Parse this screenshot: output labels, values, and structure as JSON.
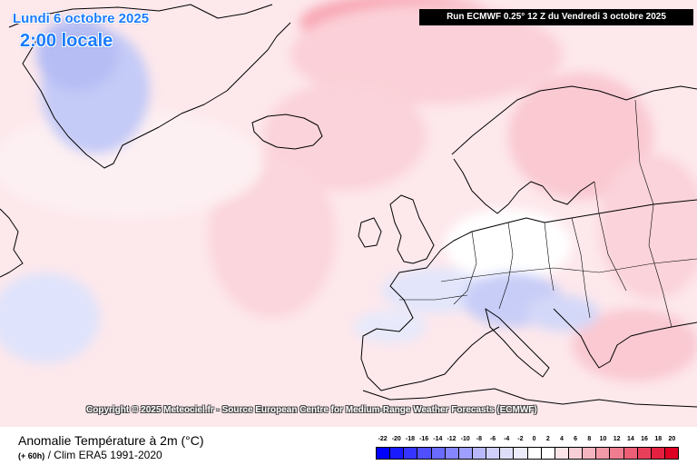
{
  "header": {
    "date": "Lundi 6 octobre 2025",
    "time": "2:00 locale",
    "run": "Run ECMWF 0.25° 12 Z du Vendredi 3 octobre 2025"
  },
  "map": {
    "copyright": "Copyright © 2025 Meteociel.fr - Source European Centre for Medium-Range Weather Forecasts (ECMWF)",
    "colors": {
      "sea_background": "#fde8ec",
      "neutral": "#ffffff",
      "cold_light": "#dfe3fb",
      "cold_medium": "#c5cbf7",
      "warm_light": "#fcd6dd",
      "warm_medium": "#f8a9b6",
      "coastline": "#000000"
    }
  },
  "footer": {
    "title": "Anomalie Température à 2m (°C)",
    "subtitle_lead": "(+ 60h)",
    "subtitle": "/ Clim ERA5 1991-2020"
  },
  "legend": {
    "labels": [
      "-22",
      "-20",
      "-18",
      "-16",
      "-14",
      "-12",
      "-10",
      "-8",
      "-6",
      "-4",
      "-2",
      "0",
      "2",
      "4",
      "6",
      "8",
      "10",
      "12",
      "14",
      "16",
      "18",
      "20"
    ],
    "colors": [
      "#0000ff",
      "#1a1aff",
      "#3535ff",
      "#4f4fff",
      "#6a6aff",
      "#8585ff",
      "#9f9fff",
      "#b8b8fb",
      "#cfcffa",
      "#dedef8",
      "#ebebfa",
      "#ffffff",
      "#ffffff",
      "#fbe4e8",
      "#f8cfd6",
      "#f5b5c0",
      "#f29aa8",
      "#ef7d8f",
      "#ec5f76",
      "#e8405b",
      "#e42040",
      "#dd0022"
    ]
  }
}
